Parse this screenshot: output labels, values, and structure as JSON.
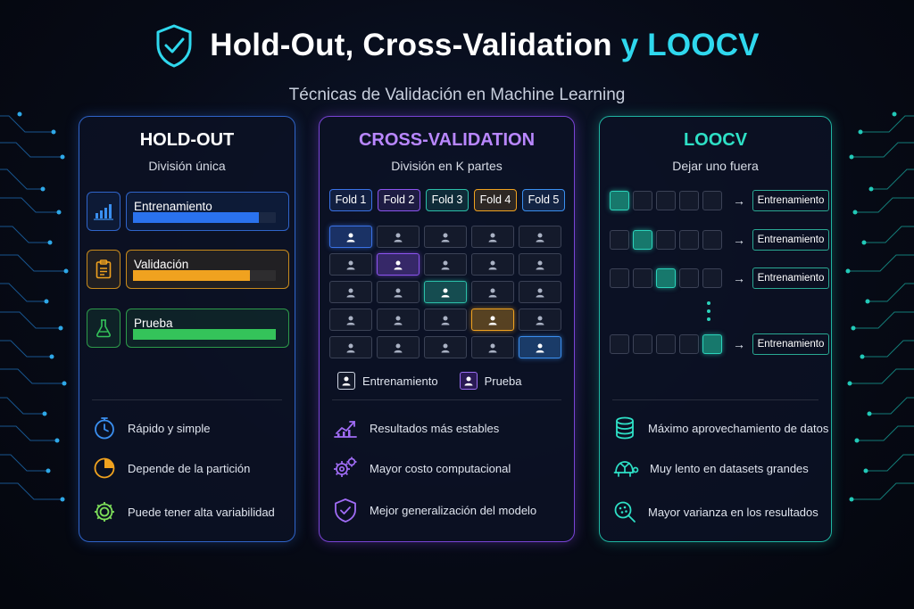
{
  "header": {
    "title_main": "Hold-Out, Cross-Validation",
    "title_accent": "y LOOCV",
    "subtitle": "Técnicas de Validación en Machine Learning",
    "icon": "shield-check-icon"
  },
  "colors": {
    "holdout": "#2f64c9",
    "cv": "#7a44d6",
    "loocv": "#1fb5a2",
    "title_accent": "#2fd8ee"
  },
  "holdout": {
    "title": "HOLD-OUT",
    "subtitle": "División única",
    "splits": [
      {
        "label": "Entrenamiento",
        "icon": "bar-chart-icon",
        "fill": 0.88,
        "color": "#2a72ee"
      },
      {
        "label": "Validación",
        "icon": "clipboard-icon",
        "fill": 0.82,
        "color": "#f0a21f"
      },
      {
        "label": "Prueba",
        "icon": "flask-icon",
        "fill": 1.0,
        "color": "#34c35a"
      }
    ],
    "benefits": [
      {
        "text": "Rápido y simple",
        "icon": "stopwatch-icon"
      },
      {
        "text": "Depende de la partición",
        "icon": "pie-chart-icon"
      },
      {
        "text": "Puede tener alta variabilidad",
        "icon": "gear-icon"
      }
    ]
  },
  "cv": {
    "title": "CROSS-VALIDATION",
    "subtitle": "División en K partes",
    "folds": [
      {
        "label": "Fold 1",
        "color": "#3a72e6"
      },
      {
        "label": "Fold 2",
        "color": "#8c54f0"
      },
      {
        "label": "Fold 3",
        "color": "#2bbfa8"
      },
      {
        "label": "Fold 4",
        "color": "#f0a21f"
      },
      {
        "label": "Fold 5",
        "color": "#3a8ff0"
      }
    ],
    "grid_test_positions": [
      0,
      1,
      2,
      3,
      4
    ],
    "legend": [
      {
        "label": "Entrenamiento",
        "icon": "user-icon"
      },
      {
        "label": "Prueba",
        "icon": "user-icon"
      }
    ],
    "benefits": [
      {
        "text": "Resultados más estables",
        "icon": "trend-chart-icon"
      },
      {
        "text": "Mayor costo computacional",
        "icon": "gears-icon"
      },
      {
        "text": "Mejor generalización del modelo",
        "icon": "shield-check-icon"
      }
    ]
  },
  "loocv": {
    "title": "LOOCV",
    "subtitle": "Dejar uno fuera",
    "rows": [
      {
        "active": 0,
        "label": "Entrenamiento"
      },
      {
        "active": 1,
        "label": "Entrenamiento"
      },
      {
        "active": 2,
        "label": "Entrenamiento"
      },
      {
        "active": 4,
        "label": "Entrenamiento"
      }
    ],
    "benefits": [
      {
        "text": "Máximo aprovechamiento de datos",
        "icon": "database-icon"
      },
      {
        "text": "Muy lento en datasets grandes",
        "icon": "turtle-icon"
      },
      {
        "text": "Mayor varianza en los resultados",
        "icon": "magnifier-icon"
      }
    ]
  }
}
